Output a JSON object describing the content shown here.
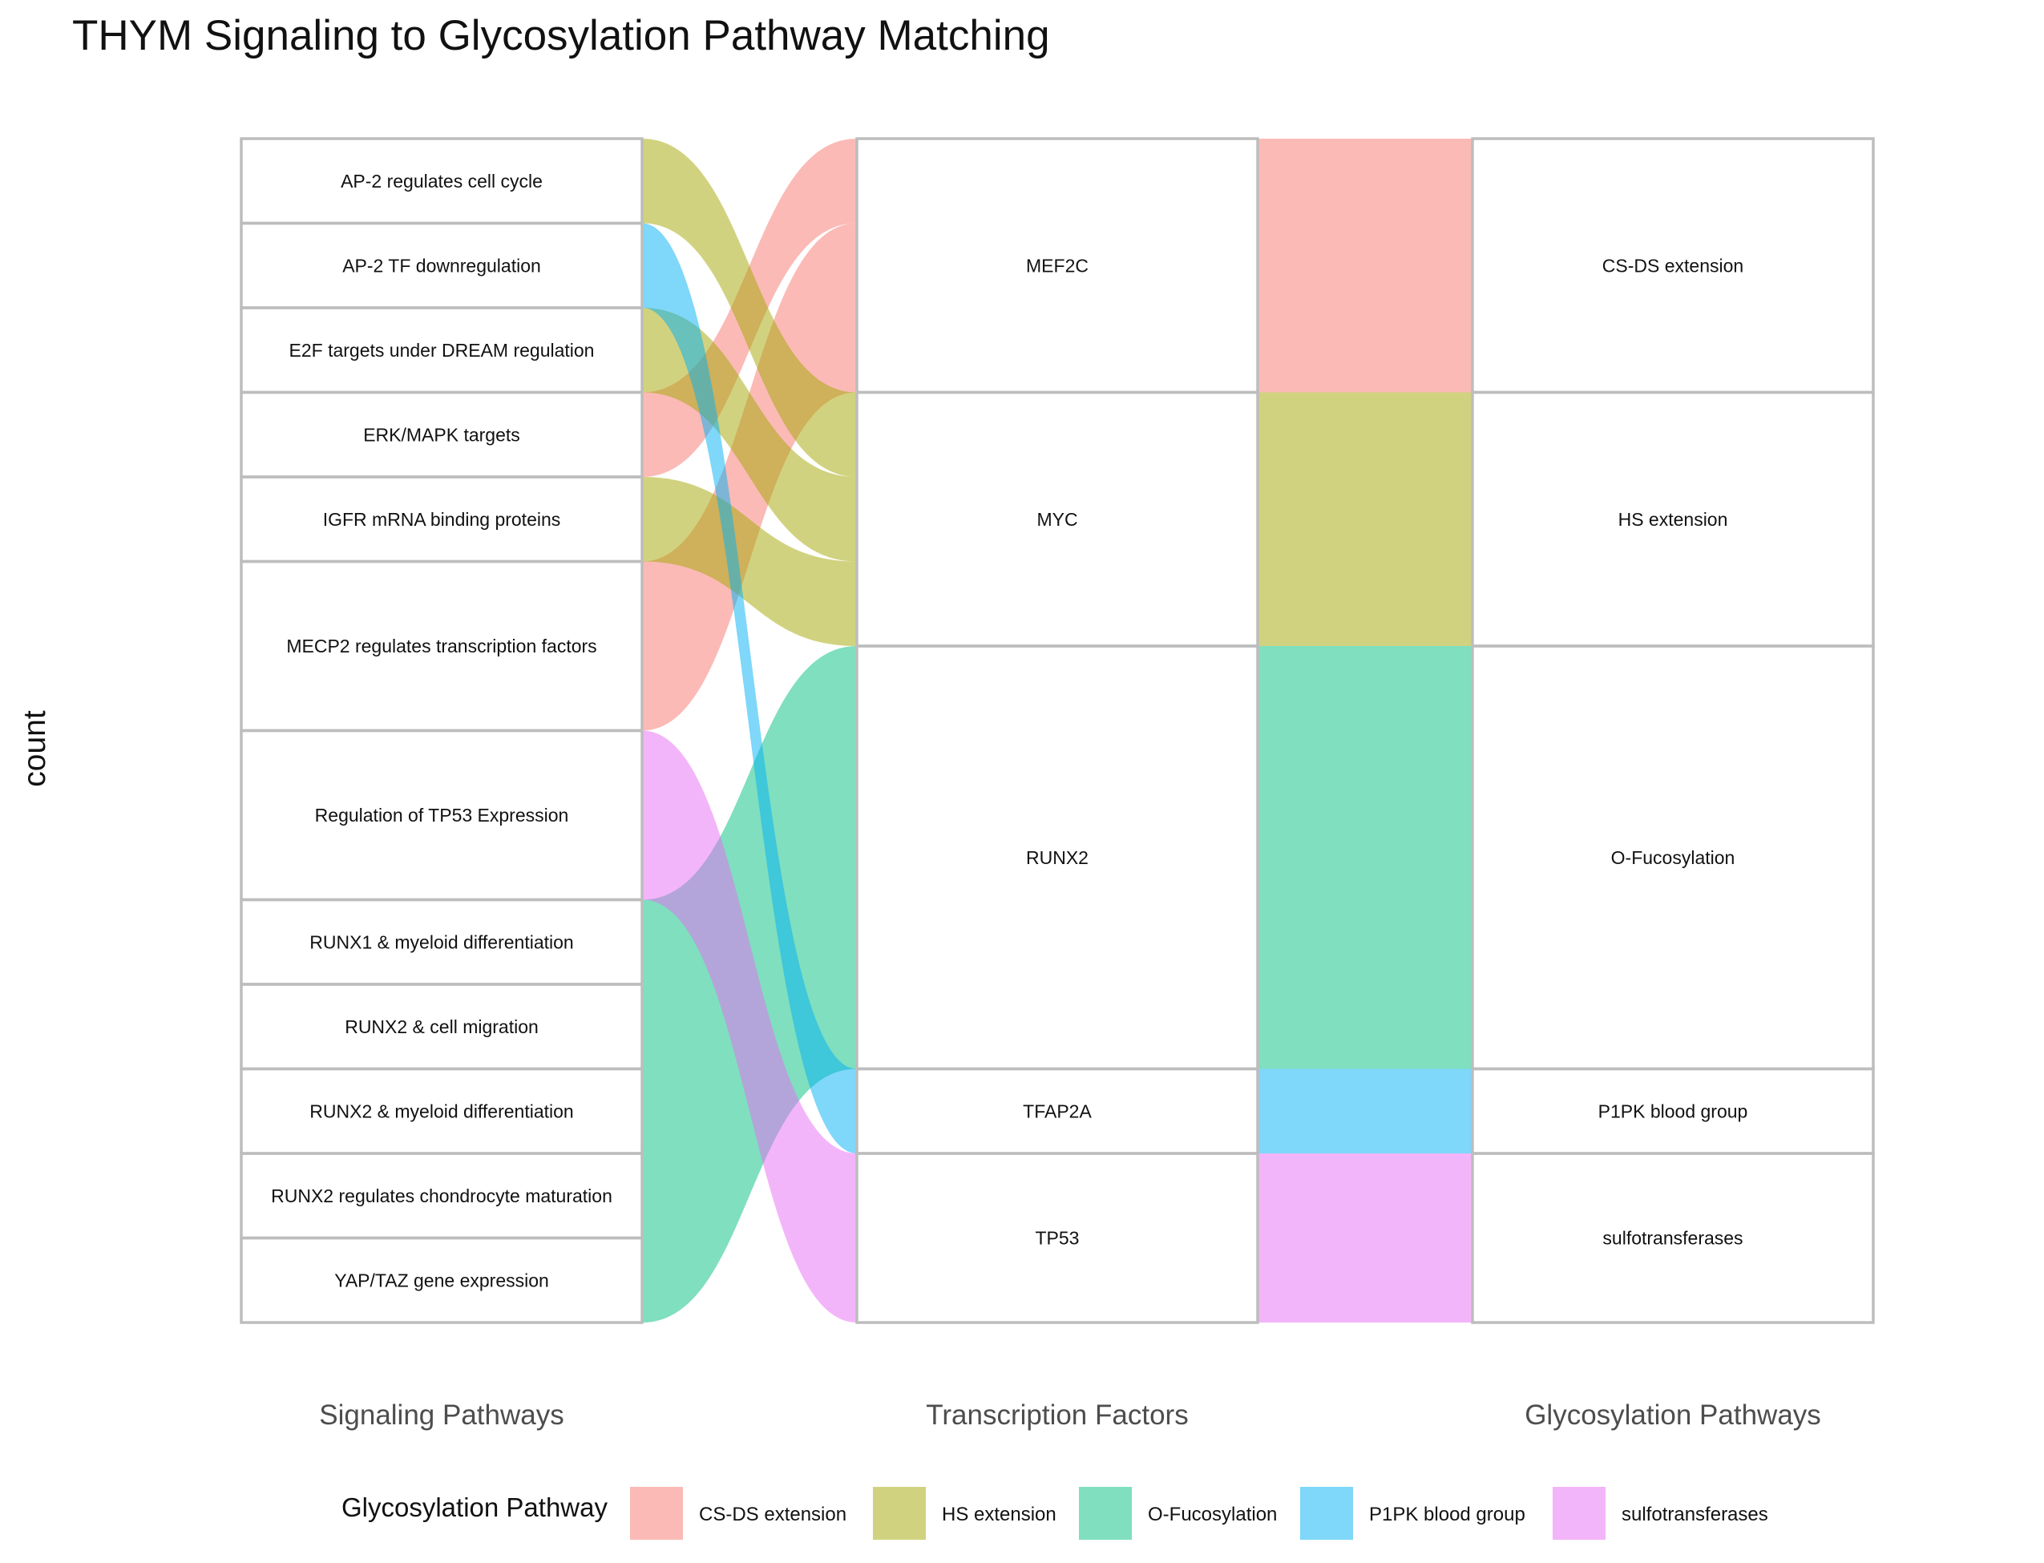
{
  "title": "THYM Signaling to Glycosylation Pathway Matching",
  "y_axis_label": "count",
  "axes": [
    "Signaling Pathways",
    "Transcription Factors",
    "Glycosylation Pathways"
  ],
  "legend": {
    "title": "Glycosylation Pathway",
    "items": [
      {
        "label": "CS-DS extension",
        "color": "#f8766d"
      },
      {
        "label": "HS extension",
        "color": "#a3a500"
      },
      {
        "label": "O-Fucosylation",
        "color": "#00bf7d"
      },
      {
        "label": "P1PK blood group",
        "color": "#00b0f6"
      },
      {
        "label": "sulfotransferases",
        "color": "#e76bf3"
      }
    ]
  },
  "chart_data": {
    "type": "alluvial",
    "total_count": 14,
    "axis_strata": [
      [
        {
          "label": "AP-2 regulates cell cycle",
          "count": 1
        },
        {
          "label": "AP-2 TF downregulation",
          "count": 1
        },
        {
          "label": "E2F targets under DREAM regulation",
          "count": 1
        },
        {
          "label": "ERK/MAPK targets",
          "count": 1
        },
        {
          "label": "IGFR mRNA binding proteins",
          "count": 1
        },
        {
          "label": "MECP2 regulates transcription factors",
          "count": 2
        },
        {
          "label": "Regulation of TP53 Expression",
          "count": 2
        },
        {
          "label": "RUNX1 & myeloid differentiation",
          "count": 1
        },
        {
          "label": "RUNX2 & cell migration",
          "count": 1
        },
        {
          "label": "RUNX2 & myeloid differentiation",
          "count": 1
        },
        {
          "label": "RUNX2 regulates chondrocyte maturation",
          "count": 1
        },
        {
          "label": "YAP/TAZ gene expression",
          "count": 1
        }
      ],
      [
        {
          "label": "MEF2C",
          "count": 3
        },
        {
          "label": "MYC",
          "count": 3
        },
        {
          "label": "RUNX2",
          "count": 5
        },
        {
          "label": "TFAP2A",
          "count": 1
        },
        {
          "label": "TP53",
          "count": 2
        }
      ],
      [
        {
          "label": "CS-DS extension",
          "count": 3
        },
        {
          "label": "HS extension",
          "count": 3
        },
        {
          "label": "O-Fucosylation",
          "count": 5
        },
        {
          "label": "P1PK blood group",
          "count": 1
        },
        {
          "label": "sulfotransferases",
          "count": 2
        }
      ]
    ],
    "flows": [
      {
        "signaling": "AP-2 regulates cell cycle",
        "tf": "MYC",
        "glyco": "HS extension",
        "count": 1
      },
      {
        "signaling": "AP-2 TF downregulation",
        "tf": "TFAP2A",
        "glyco": "P1PK blood group",
        "count": 1
      },
      {
        "signaling": "E2F targets under DREAM regulation",
        "tf": "MYC",
        "glyco": "HS extension",
        "count": 1
      },
      {
        "signaling": "ERK/MAPK targets",
        "tf": "MEF2C",
        "glyco": "CS-DS extension",
        "count": 1
      },
      {
        "signaling": "IGFR mRNA binding proteins",
        "tf": "MYC",
        "glyco": "HS extension",
        "count": 1
      },
      {
        "signaling": "MECP2 regulates transcription factors",
        "tf": "MEF2C",
        "glyco": "CS-DS extension",
        "count": 2
      },
      {
        "signaling": "Regulation of TP53 Expression",
        "tf": "TP53",
        "glyco": "sulfotransferases",
        "count": 2
      },
      {
        "signaling": "RUNX1 & myeloid differentiation",
        "tf": "RUNX2",
        "glyco": "O-Fucosylation",
        "count": 1
      },
      {
        "signaling": "RUNX2 & cell migration",
        "tf": "RUNX2",
        "glyco": "O-Fucosylation",
        "count": 1
      },
      {
        "signaling": "RUNX2 & myeloid differentiation",
        "tf": "RUNX2",
        "glyco": "O-Fucosylation",
        "count": 1
      },
      {
        "signaling": "RUNX2 regulates chondrocyte maturation",
        "tf": "RUNX2",
        "glyco": "O-Fucosylation",
        "count": 1
      },
      {
        "signaling": "YAP/TAZ gene expression",
        "tf": "RUNX2",
        "glyco": "O-Fucosylation",
        "count": 1
      }
    ]
  }
}
